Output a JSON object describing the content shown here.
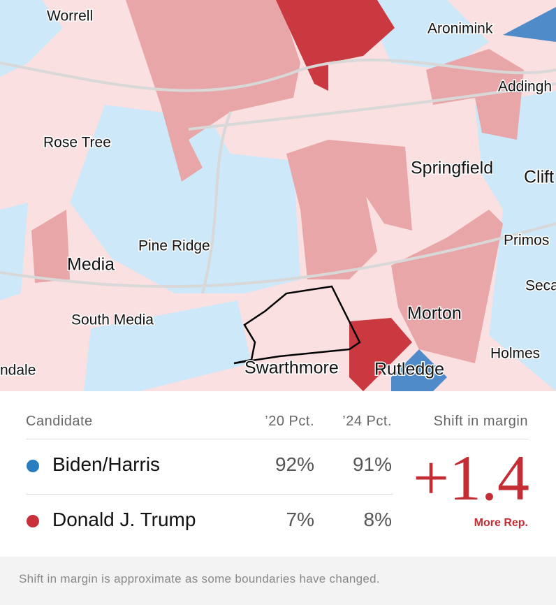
{
  "map": {
    "labels": [
      "Worrell",
      "Aronimink",
      "Addingh",
      "Rose Tree",
      "Springfield",
      "Clift",
      "Pine Ridge",
      "Primos",
      "Media",
      "Seca",
      "South Media",
      "Morton",
      "Holmes",
      "ndale",
      "Swarthmore",
      "Rutledge"
    ]
  },
  "table": {
    "headers": [
      "Candidate",
      "’20 Pct.",
      "’24 Pct.",
      "Shift in margin"
    ],
    "rows": [
      [
        "Biden/Harris",
        "92%",
        "91%"
      ],
      [
        "Donald J. Trump",
        "7%",
        "8%"
      ]
    ],
    "shift": "+1.4",
    "shift_note": "More Rep."
  },
  "footnote": "Shift in margin is approximate as some boundaries have changed."
}
